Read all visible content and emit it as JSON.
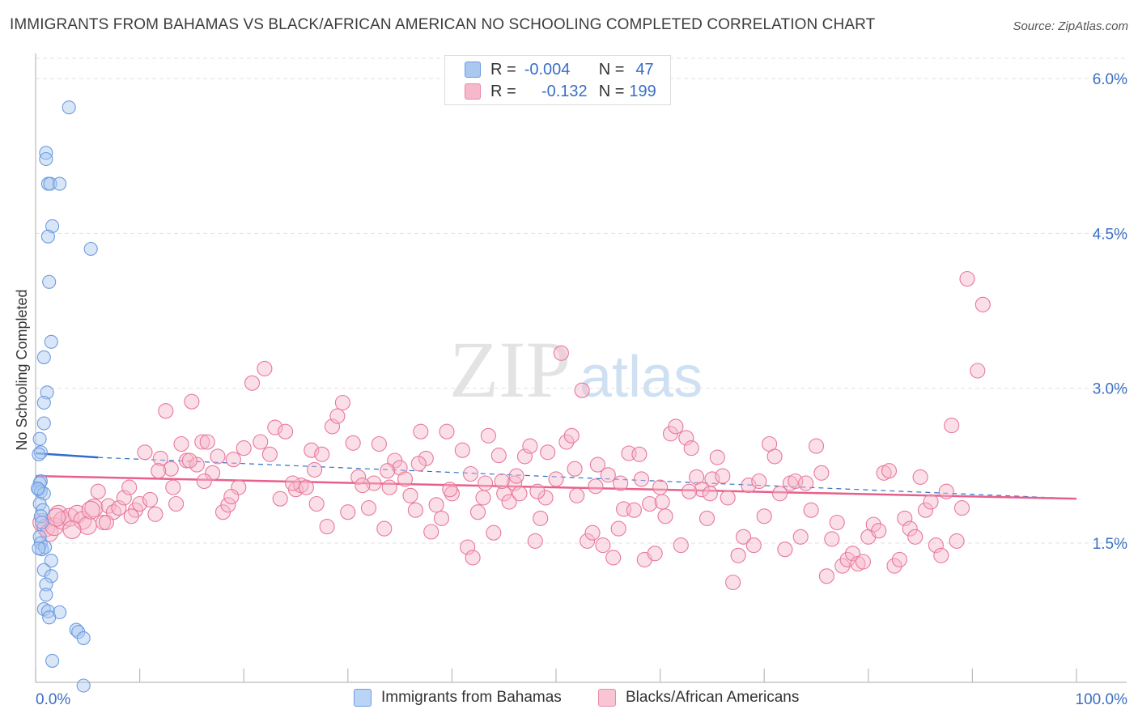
{
  "title": "IMMIGRANTS FROM BAHAMAS VS BLACK/AFRICAN AMERICAN NO SCHOOLING COMPLETED CORRELATION CHART",
  "source": "Source: ZipAtlas.com",
  "watermark": {
    "zip": "ZIP",
    "atlas": "atlas"
  },
  "legend": {
    "r_label": "R =",
    "n_label": "N =",
    "rows": [
      {
        "r": "-0.004",
        "n": "47",
        "color": "#a9c8f0",
        "border": "#6d9be0"
      },
      {
        "r": "-0.132",
        "n": "199",
        "color": "#f7b8cb",
        "border": "#e88aa6"
      }
    ]
  },
  "bottom_legend": [
    {
      "label": "Immigrants from Bahamas",
      "color": "#b9d4f5",
      "border": "#6d9be0"
    },
    {
      "label": "Blacks/African Americans",
      "color": "#f9c4d3",
      "border": "#e88aa6"
    }
  ],
  "chart_data": {
    "type": "scatter",
    "title": "IMMIGRANTS FROM BAHAMAS VS BLACK/AFRICAN AMERICAN NO SCHOOLING COMPLETED CORRELATION CHART",
    "xlabel": "",
    "ylabel": "No Schooling Completed",
    "xlim": [
      0,
      100
    ],
    "ylim": [
      0,
      6.2
    ],
    "x_tick_labels": [
      "0.0%",
      "100.0%"
    ],
    "y_ticks": [
      1.5,
      3.0,
      4.5,
      6.0
    ],
    "y_tick_labels": [
      "1.5%",
      "3.0%",
      "4.5%",
      "6.0%"
    ],
    "grid": true,
    "legend_position": "top-center",
    "colors": {
      "blue": "#6d9be0",
      "pink": "#e8789a",
      "blue_line": "#2f6fc9",
      "pink_line": "#e8608a",
      "axis_label": "#3a6fc4"
    },
    "series": [
      {
        "name": "Immigrants from Bahamas",
        "trend": {
          "x": [
            0,
            6,
            100
          ],
          "y": [
            2.37,
            2.33,
            1.93
          ]
        },
        "points": [
          [
            3.2,
            5.72
          ],
          [
            1.0,
            5.28
          ],
          [
            1.0,
            5.22
          ],
          [
            1.2,
            4.98
          ],
          [
            1.4,
            4.98
          ],
          [
            2.3,
            4.98
          ],
          [
            1.6,
            4.57
          ],
          [
            1.2,
            4.47
          ],
          [
            5.3,
            4.35
          ],
          [
            1.3,
            4.03
          ],
          [
            1.5,
            3.45
          ],
          [
            0.8,
            3.3
          ],
          [
            1.1,
            2.96
          ],
          [
            0.8,
            2.86
          ],
          [
            0.8,
            2.66
          ],
          [
            0.4,
            2.51
          ],
          [
            0.5,
            2.38
          ],
          [
            0.3,
            2.36
          ],
          [
            0.5,
            2.1
          ],
          [
            0.4,
            2.08
          ],
          [
            0.3,
            2.02
          ],
          [
            0.5,
            2.0
          ],
          [
            0.8,
            1.98
          ],
          [
            0.4,
            1.88
          ],
          [
            0.7,
            1.82
          ],
          [
            0.5,
            1.76
          ],
          [
            0.6,
            1.7
          ],
          [
            0.4,
            1.56
          ],
          [
            0.5,
            1.5
          ],
          [
            0.6,
            1.44
          ],
          [
            0.9,
            1.46
          ],
          [
            1.5,
            1.33
          ],
          [
            0.8,
            1.24
          ],
          [
            1.5,
            1.18
          ],
          [
            1.0,
            1.1
          ],
          [
            1.0,
            1.0
          ],
          [
            0.8,
            0.86
          ],
          [
            1.2,
            0.84
          ],
          [
            2.3,
            0.83
          ],
          [
            1.3,
            0.78
          ],
          [
            3.9,
            0.66
          ],
          [
            4.1,
            0.64
          ],
          [
            4.6,
            0.58
          ],
          [
            1.6,
            0.36
          ],
          [
            4.6,
            0.12
          ],
          [
            0.2,
            2.03
          ],
          [
            0.3,
            1.45
          ]
        ]
      },
      {
        "name": "Blacks/African Americans",
        "trend": {
          "x": [
            0,
            100
          ],
          "y": [
            2.15,
            1.93
          ]
        },
        "points": [
          [
            0.6,
            1.7
          ],
          [
            1.0,
            1.65
          ],
          [
            1.3,
            1.6
          ],
          [
            1.8,
            1.66
          ],
          [
            2.2,
            1.78
          ],
          [
            2.6,
            1.72
          ],
          [
            3.3,
            1.75
          ],
          [
            4.0,
            1.78
          ],
          [
            4.5,
            1.72
          ],
          [
            5.0,
            1.67
          ],
          [
            5.6,
            1.84
          ],
          [
            6.0,
            2.0
          ],
          [
            6.5,
            1.7
          ],
          [
            7.0,
            1.86
          ],
          [
            7.5,
            1.8
          ],
          [
            8.0,
            1.84
          ],
          [
            8.5,
            1.94
          ],
          [
            9.0,
            2.04
          ],
          [
            9.6,
            1.82
          ],
          [
            10.0,
            1.88
          ],
          [
            10.5,
            2.38
          ],
          [
            11.0,
            1.92
          ],
          [
            11.5,
            1.78
          ],
          [
            12.0,
            2.32
          ],
          [
            12.5,
            2.78
          ],
          [
            13.0,
            2.22
          ],
          [
            13.5,
            1.88
          ],
          [
            14.0,
            2.46
          ],
          [
            14.5,
            2.3
          ],
          [
            15.0,
            2.87
          ],
          [
            15.5,
            2.26
          ],
          [
            16.0,
            2.48
          ],
          [
            16.5,
            2.48
          ],
          [
            17.0,
            2.18
          ],
          [
            17.5,
            2.34
          ],
          [
            18.0,
            1.8
          ],
          [
            18.5,
            1.87
          ],
          [
            19.0,
            2.31
          ],
          [
            19.5,
            2.04
          ],
          [
            20.0,
            2.42
          ],
          [
            22.0,
            3.19
          ],
          [
            22.5,
            2.36
          ],
          [
            23.0,
            2.62
          ],
          [
            23.5,
            1.93
          ],
          [
            24.0,
            2.58
          ],
          [
            25.0,
            2.02
          ],
          [
            25.5,
            2.06
          ],
          [
            26.0,
            2.04
          ],
          [
            26.5,
            2.4
          ],
          [
            27.0,
            1.88
          ],
          [
            27.5,
            2.36
          ],
          [
            28.0,
            1.66
          ],
          [
            28.5,
            2.63
          ],
          [
            29.0,
            2.73
          ],
          [
            29.5,
            2.86
          ],
          [
            30.0,
            1.8
          ],
          [
            30.5,
            2.47
          ],
          [
            31.0,
            2.14
          ],
          [
            32.0,
            1.84
          ],
          [
            32.5,
            2.08
          ],
          [
            33.0,
            2.46
          ],
          [
            33.5,
            1.64
          ],
          [
            34.0,
            2.04
          ],
          [
            34.5,
            2.3
          ],
          [
            35.0,
            2.23
          ],
          [
            35.5,
            2.12
          ],
          [
            36.0,
            1.96
          ],
          [
            36.5,
            1.82
          ],
          [
            37.0,
            2.58
          ],
          [
            37.5,
            2.32
          ],
          [
            38.0,
            1.61
          ],
          [
            38.5,
            1.87
          ],
          [
            39.0,
            1.74
          ],
          [
            39.5,
            2.58
          ],
          [
            40.0,
            1.98
          ],
          [
            41.0,
            2.4
          ],
          [
            41.5,
            1.46
          ],
          [
            42.0,
            1.36
          ],
          [
            42.5,
            1.8
          ],
          [
            43.0,
            1.94
          ],
          [
            43.5,
            2.54
          ],
          [
            44.0,
            1.6
          ],
          [
            44.5,
            2.35
          ],
          [
            45.0,
            1.98
          ],
          [
            45.5,
            1.9
          ],
          [
            46.0,
            2.08
          ],
          [
            46.5,
            1.98
          ],
          [
            47.0,
            2.34
          ],
          [
            47.5,
            2.44
          ],
          [
            48.0,
            1.52
          ],
          [
            48.5,
            1.74
          ],
          [
            49.0,
            1.94
          ],
          [
            50.0,
            2.12
          ],
          [
            50.5,
            3.34
          ],
          [
            51.0,
            2.48
          ],
          [
            51.5,
            2.54
          ],
          [
            52.0,
            1.96
          ],
          [
            52.5,
            2.98
          ],
          [
            53.0,
            1.52
          ],
          [
            53.5,
            1.6
          ],
          [
            54.0,
            2.26
          ],
          [
            54.5,
            1.48
          ],
          [
            55.0,
            2.16
          ],
          [
            55.5,
            1.36
          ],
          [
            56.0,
            1.64
          ],
          [
            56.5,
            1.83
          ],
          [
            57.0,
            2.37
          ],
          [
            57.5,
            1.82
          ],
          [
            58.0,
            2.36
          ],
          [
            58.5,
            1.34
          ],
          [
            59.0,
            1.88
          ],
          [
            59.5,
            1.4
          ],
          [
            60.0,
            2.04
          ],
          [
            60.5,
            1.76
          ],
          [
            61.0,
            2.56
          ],
          [
            61.5,
            2.63
          ],
          [
            62.0,
            1.48
          ],
          [
            62.5,
            2.52
          ],
          [
            63.0,
            2.42
          ],
          [
            63.5,
            2.14
          ],
          [
            64.0,
            2.02
          ],
          [
            64.5,
            1.74
          ],
          [
            65.0,
            2.12
          ],
          [
            65.5,
            2.33
          ],
          [
            66.0,
            2.15
          ],
          [
            66.5,
            1.94
          ],
          [
            67.0,
            1.12
          ],
          [
            67.5,
            1.38
          ],
          [
            68.0,
            1.56
          ],
          [
            68.5,
            2.06
          ],
          [
            69.0,
            1.48
          ],
          [
            69.5,
            2.1
          ],
          [
            70.0,
            1.76
          ],
          [
            70.5,
            2.46
          ],
          [
            71.0,
            2.34
          ],
          [
            71.5,
            1.98
          ],
          [
            72.0,
            1.44
          ],
          [
            72.5,
            2.08
          ],
          [
            73.0,
            2.1
          ],
          [
            73.5,
            1.56
          ],
          [
            74.0,
            2.08
          ],
          [
            74.5,
            1.82
          ],
          [
            75.0,
            2.44
          ],
          [
            75.5,
            2.18
          ],
          [
            76.0,
            1.18
          ],
          [
            76.5,
            1.54
          ],
          [
            77.0,
            1.7
          ],
          [
            77.5,
            1.28
          ],
          [
            78.0,
            1.34
          ],
          [
            78.5,
            1.4
          ],
          [
            79.0,
            1.3
          ],
          [
            79.5,
            1.32
          ],
          [
            80.0,
            1.56
          ],
          [
            80.5,
            1.68
          ],
          [
            81.0,
            1.62
          ],
          [
            81.5,
            2.18
          ],
          [
            82.0,
            2.2
          ],
          [
            82.5,
            1.28
          ],
          [
            83.0,
            1.34
          ],
          [
            83.5,
            1.74
          ],
          [
            84.0,
            1.64
          ],
          [
            84.5,
            1.56
          ],
          [
            85.0,
            2.14
          ],
          [
            85.5,
            1.82
          ],
          [
            86.0,
            1.9
          ],
          [
            86.5,
            1.48
          ],
          [
            87.0,
            1.38
          ],
          [
            87.5,
            2.0
          ],
          [
            88.0,
            2.64
          ],
          [
            88.5,
            1.52
          ],
          [
            89.0,
            1.84
          ],
          [
            89.5,
            4.06
          ],
          [
            90.5,
            3.17
          ],
          [
            91.0,
            3.81
          ],
          [
            2.0,
            1.75
          ],
          [
            3.5,
            1.63
          ],
          [
            5.3,
            1.82
          ],
          [
            6.8,
            1.7
          ],
          [
            9.2,
            1.76
          ],
          [
            11.8,
            2.2
          ],
          [
            13.2,
            2.04
          ],
          [
            14.8,
            2.3
          ],
          [
            16.2,
            2.1
          ],
          [
            18.8,
            1.95
          ],
          [
            20.8,
            3.05
          ],
          [
            21.6,
            2.48
          ],
          [
            24.7,
            2.08
          ],
          [
            26.8,
            2.21
          ],
          [
            31.4,
            2.06
          ],
          [
            33.8,
            2.2
          ],
          [
            36.8,
            2.27
          ],
          [
            39.8,
            2.02
          ],
          [
            41.8,
            2.17
          ],
          [
            43.2,
            2.08
          ],
          [
            44.8,
            2.1
          ],
          [
            46.2,
            2.15
          ],
          [
            48.2,
            2.0
          ],
          [
            49.2,
            2.38
          ],
          [
            51.8,
            2.22
          ],
          [
            53.8,
            2.05
          ],
          [
            56.2,
            2.08
          ],
          [
            58.2,
            2.12
          ],
          [
            60.2,
            1.9
          ],
          [
            62.8,
            2.0
          ],
          [
            64.8,
            1.98
          ]
        ]
      }
    ]
  }
}
